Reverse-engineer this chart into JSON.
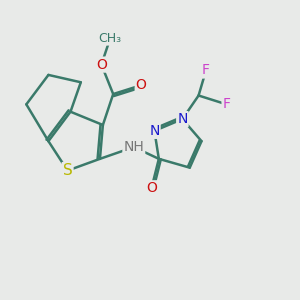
{
  "background_color": "#e8eae8",
  "bond_color": "#3a7a6a",
  "bond_width": 1.8,
  "S_color": "#b8b800",
  "N_color": "#1a1acc",
  "O_color": "#cc1111",
  "F_color": "#cc44cc",
  "H_color": "#777777",
  "C_color": "#3a7a6a",
  "text_fontsize": 10,
  "figsize": [
    3.0,
    3.0
  ],
  "dpi": 100,
  "xlim": [
    0,
    10
  ],
  "ylim": [
    0,
    10
  ]
}
